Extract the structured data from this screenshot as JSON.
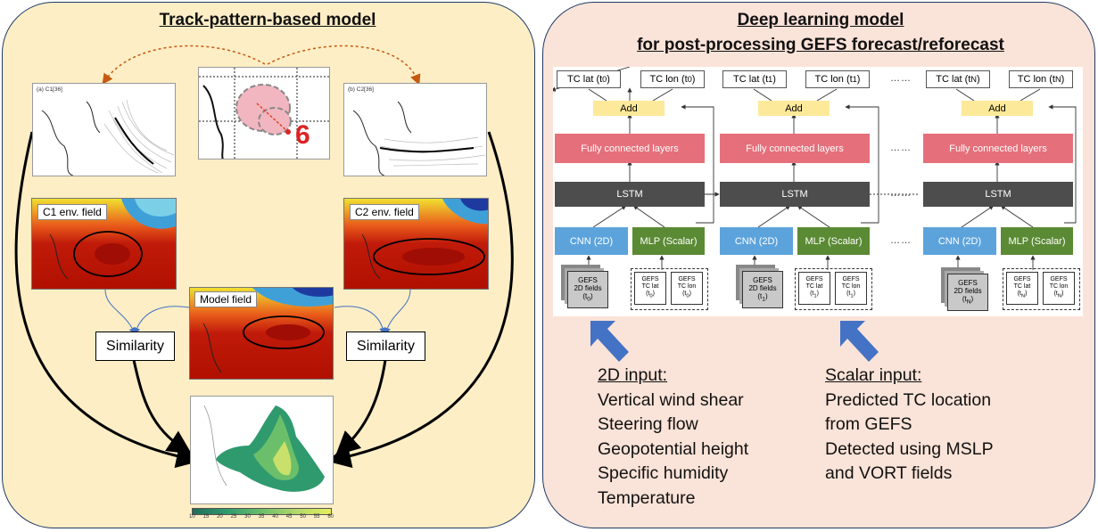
{
  "left_panel": {
    "title": "Track-pattern-based model",
    "map_c1_label": "(a) C1[36]",
    "map_c2_label": "(b) C2[36]",
    "c1_env_label": "C1 env. field",
    "c2_env_label": "C2 env. field",
    "model_field_label": "Model field",
    "similarity_left": "Similarity",
    "similarity_right": "Similarity",
    "colorbar_ticks": [
      "10",
      "15",
      "20",
      "25",
      "30",
      "35",
      "40",
      "45",
      "50",
      "55",
      "60"
    ]
  },
  "right_panel": {
    "title_line1": "Deep learning model",
    "title_line2": "for post-processing GEFS forecast/reforecast",
    "steps": [
      {
        "out_lat": "TC lat (t",
        "out_lat_sub": "0",
        "out_lon": "TC lon (t",
        "out_lon_sub": "0",
        "add": "Add",
        "fc": "Fully connected layers",
        "lstm": "LSTM",
        "cnn": "CNN (2D)",
        "mlp": "MLP (Scalar)",
        "fields_l1": "GEFS",
        "fields_l2": "2D fields",
        "fields_t": "(t",
        "fields_sub": "0",
        "s_lat_l1": "GEFS",
        "s_lat_l2": "TC lat",
        "s_lat_t": "(t",
        "s_lat_sub": "0",
        "s_lon_l1": "GEFS",
        "s_lon_l2": "TC lon",
        "s_lon_t": "(t",
        "s_lon_sub": "0"
      },
      {
        "out_lat": "TC lat (t",
        "out_lat_sub": "1",
        "out_lon": "TC lon (t",
        "out_lon_sub": "1",
        "add": "Add",
        "fc": "Fully connected layers",
        "lstm": "LSTM",
        "cnn": "CNN (2D)",
        "mlp": "MLP (Scalar)",
        "fields_l1": "GEFS",
        "fields_l2": "2D fields",
        "fields_t": "(t",
        "fields_sub": "1",
        "s_lat_l1": "GEFS",
        "s_lat_l2": "TC lat",
        "s_lat_t": "(t",
        "s_lat_sub": "1",
        "s_lon_l1": "GEFS",
        "s_lon_l2": "TC lon",
        "s_lon_t": "(t",
        "s_lon_sub": "1"
      },
      {
        "out_lat": "TC lat (t",
        "out_lat_sub": "N",
        "out_lon": "TC lon (t",
        "out_lon_sub": "N",
        "add": "Add",
        "fc": "Fully connected layers",
        "lstm": "LSTM",
        "cnn": "CNN (2D)",
        "mlp": "MLP (Scalar)",
        "fields_l1": "GEFS",
        "fields_l2": "2D fields",
        "fields_t": "(t",
        "fields_sub": "N",
        "s_lat_l1": "GEFS",
        "s_lat_l2": "TC lat",
        "s_lat_t": "(t",
        "s_lat_sub": "N",
        "s_lon_l1": "GEFS",
        "s_lon_l2": "TC lon",
        "s_lon_t": "(t",
        "s_lon_sub": "N"
      }
    ],
    "ellipsis": "……",
    "input_2d": {
      "heading": "2D input:",
      "items": [
        "Vertical wind shear",
        "Steering flow",
        "Geopotential height",
        "Specific humidity",
        "Temperature"
      ]
    },
    "input_scalar": {
      "heading": "Scalar input:",
      "items": [
        "Predicted TC location",
        "from GEFS",
        "Detected using MSLP",
        "and VORT fields"
      ]
    }
  },
  "colors": {
    "left_bg": "#fdeec5",
    "right_bg": "#fae3d8",
    "border": "#1f3a66",
    "add": "#fde99a",
    "fc": "#e5707b",
    "lstm": "#4d4d4d",
    "cnn": "#5ca3dc",
    "mlp": "#5b8a34",
    "blue_arrow": "#4472c4",
    "orange_arrow": "#c55a11"
  }
}
